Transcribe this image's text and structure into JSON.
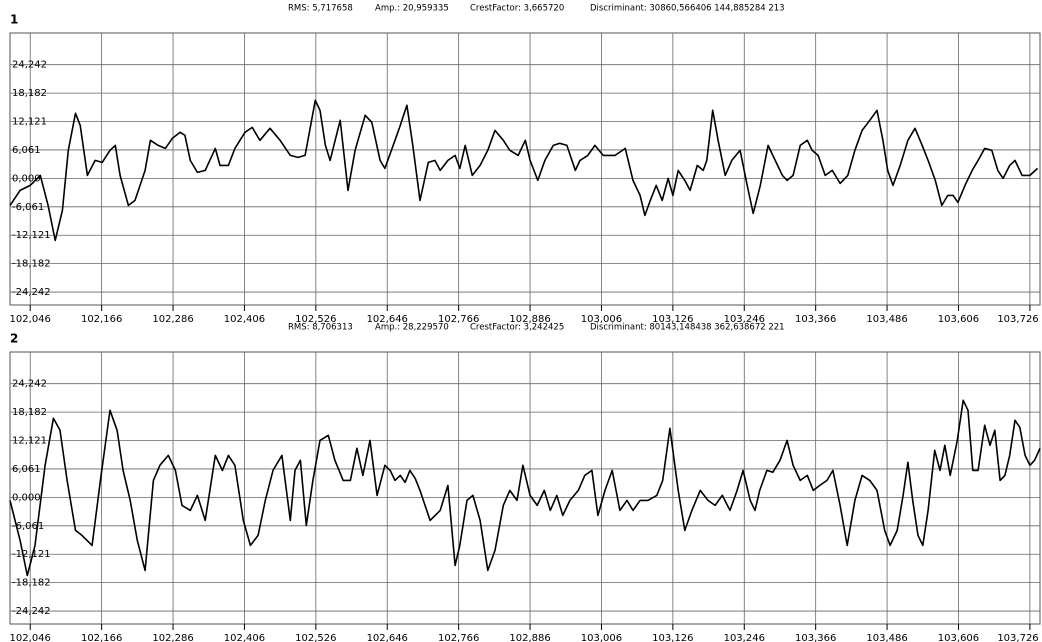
{
  "chart_data": [
    {
      "type": "line",
      "title": "1",
      "stats": [
        "RMS: 5,717658",
        "Amp.: 20,959335",
        "CrestFactor: 3,665720",
        "Discriminant: 30860,566406 144,885284 213"
      ],
      "color": "#000000",
      "grid": true,
      "xlim": [
        102.012,
        103.743
      ],
      "ylim": [
        -27,
        31
      ],
      "xticks": [
        {
          "value": 102.046,
          "label": "102,046"
        },
        {
          "value": 102.166,
          "label": "102,166"
        },
        {
          "value": 102.286,
          "label": "102,286"
        },
        {
          "value": 102.406,
          "label": "102,406"
        },
        {
          "value": 102.526,
          "label": "102,526"
        },
        {
          "value": 102.646,
          "label": "102,646"
        },
        {
          "value": 102.766,
          "label": "102,766"
        },
        {
          "value": 102.886,
          "label": "102,886"
        },
        {
          "value": 103.006,
          "label": "103,006"
        },
        {
          "value": 103.126,
          "label": "103,126"
        },
        {
          "value": 103.246,
          "label": "103,246"
        },
        {
          "value": 103.366,
          "label": "103,366"
        },
        {
          "value": 103.486,
          "label": "103,486"
        },
        {
          "value": 103.606,
          "label": "103,606"
        },
        {
          "value": 103.726,
          "label": "103,726"
        }
      ],
      "yticks": [
        {
          "value": 24.242,
          "label": "24,242"
        },
        {
          "value": 18.182,
          "label": "18,182"
        },
        {
          "value": 12.121,
          "label": "12,121"
        },
        {
          "value": 6.061,
          "label": "6,061"
        },
        {
          "value": 0,
          "label": "0,000"
        },
        {
          "value": -6.061,
          "label": "-6,061"
        },
        {
          "value": -12.121,
          "label": "-12,121"
        },
        {
          "value": -18.182,
          "label": "-18,182"
        },
        {
          "value": -24.242,
          "label": "-24,242"
        }
      ],
      "x": [
        102.012,
        102.029,
        102.046,
        102.063,
        102.076,
        102.088,
        102.1,
        102.11,
        102.122,
        102.13,
        102.142,
        102.155,
        102.167,
        102.18,
        102.189,
        102.197,
        102.211,
        102.222,
        102.239,
        102.248,
        102.261,
        102.273,
        102.285,
        102.298,
        102.306,
        102.315,
        102.327,
        102.34,
        102.357,
        102.365,
        102.379,
        102.39,
        102.407,
        102.419,
        102.432,
        102.449,
        102.466,
        102.483,
        102.496,
        102.508,
        102.525,
        102.533,
        102.542,
        102.55,
        102.567,
        102.58,
        102.592,
        102.609,
        102.62,
        102.634,
        102.642,
        102.659,
        102.668,
        102.679,
        102.689,
        102.701,
        102.715,
        102.726,
        102.735,
        102.748,
        102.76,
        102.768,
        102.777,
        102.789,
        102.802,
        102.815,
        102.827,
        102.841,
        102.852,
        102.866,
        102.878,
        102.886,
        102.899,
        102.911,
        102.925,
        102.936,
        102.948,
        102.962,
        102.97,
        102.983,
        102.995,
        103.009,
        103.029,
        103.046,
        103.059,
        103.071,
        103.079,
        103.088,
        103.098,
        103.108,
        103.118,
        103.126,
        103.135,
        103.146,
        103.155,
        103.167,
        103.177,
        103.183,
        103.193,
        103.202,
        103.214,
        103.225,
        103.239,
        103.251,
        103.261,
        103.273,
        103.286,
        103.298,
        103.31,
        103.318,
        103.328,
        103.34,
        103.352,
        103.36,
        103.37,
        103.382,
        103.394,
        103.407,
        103.42,
        103.432,
        103.444,
        103.457,
        103.469,
        103.479,
        103.487,
        103.496,
        103.508,
        103.521,
        103.533,
        103.545,
        103.555,
        103.567,
        103.578,
        103.588,
        103.597,
        103.605,
        103.617,
        103.629,
        103.639,
        103.65,
        103.662,
        103.672,
        103.681,
        103.692,
        103.701,
        103.713,
        103.726,
        103.739
      ],
      "values": [
        -5.76,
        -2.56,
        -1.49,
        0.64,
        -5.76,
        -13.23,
        -6.83,
        5.98,
        13.87,
        11.31,
        0.64,
        3.84,
        3.41,
        5.98,
        7.04,
        0.64,
        -5.76,
        -4.7,
        1.71,
        8.11,
        7.04,
        6.4,
        8.54,
        9.82,
        9.18,
        3.84,
        1.28,
        1.71,
        6.4,
        2.77,
        2.77,
        6.4,
        9.82,
        10.88,
        8.11,
        10.67,
        8.11,
        4.91,
        4.48,
        4.91,
        16.65,
        14.51,
        7.04,
        3.84,
        12.38,
        -2.56,
        5.98,
        13.45,
        11.95,
        3.84,
        2.13,
        8.11,
        11.31,
        15.58,
        7.04,
        -4.7,
        3.41,
        3.84,
        1.71,
        3.84,
        4.91,
        2.13,
        7.04,
        0.64,
        2.77,
        5.98,
        10.24,
        8.11,
        5.98,
        4.91,
        8.11,
        3.84,
        -0.43,
        3.84,
        7.04,
        7.47,
        7.04,
        1.71,
        3.84,
        4.91,
        7.04,
        4.91,
        4.91,
        6.4,
        -0.43,
        -3.63,
        -7.9,
        -4.7,
        -1.49,
        -4.7,
        0.0,
        -3.63,
        1.71,
        -0.43,
        -2.56,
        2.77,
        1.71,
        3.84,
        14.51,
        8.11,
        0.64,
        3.84,
        5.98,
        -1.49,
        -7.47,
        -1.49,
        7.04,
        3.84,
        0.64,
        -0.43,
        0.64,
        7.04,
        8.11,
        5.98,
        4.91,
        0.64,
        1.71,
        -1.07,
        0.64,
        5.98,
        10.24,
        12.38,
        14.51,
        8.11,
        1.71,
        -1.49,
        2.77,
        8.11,
        10.67,
        7.04,
        3.84,
        -0.43,
        -5.76,
        -3.63,
        -3.63,
        -5.12,
        -1.49,
        1.71,
        3.84,
        6.4,
        5.98,
        1.71,
        0.0,
        2.77,
        3.84,
        0.64,
        0.64,
        2.13
      ]
    },
    {
      "type": "line",
      "title": "2",
      "stats": [
        "RMS: 8,706313",
        "Amp.: 28,229570",
        "CrestFactor: 3,242425",
        "Discriminant: 80143,148438 362,638672 221"
      ],
      "color": "#000000",
      "grid": true,
      "xlim": [
        102.012,
        103.743
      ],
      "ylim": [
        -27,
        31
      ],
      "xticks": [
        {
          "value": 102.046,
          "label": "102,046"
        },
        {
          "value": 102.166,
          "label": "102,166"
        },
        {
          "value": 102.286,
          "label": "102,286"
        },
        {
          "value": 102.406,
          "label": "102,406"
        },
        {
          "value": 102.526,
          "label": "102,526"
        },
        {
          "value": 102.646,
          "label": "102,646"
        },
        {
          "value": 102.766,
          "label": "102,766"
        },
        {
          "value": 102.886,
          "label": "102,886"
        },
        {
          "value": 103.006,
          "label": "103,006"
        },
        {
          "value": 103.126,
          "label": "103,126"
        },
        {
          "value": 103.246,
          "label": "103,246"
        },
        {
          "value": 103.366,
          "label": "103,366"
        },
        {
          "value": 103.486,
          "label": "103,486"
        },
        {
          "value": 103.606,
          "label": "103,606"
        },
        {
          "value": 103.726,
          "label": "103,726"
        }
      ],
      "yticks": [
        {
          "value": 24.242,
          "label": "24,242"
        },
        {
          "value": 18.182,
          "label": "18,182"
        },
        {
          "value": 12.121,
          "label": "12,121"
        },
        {
          "value": 6.061,
          "label": "6,061"
        },
        {
          "value": 0,
          "label": "0,000"
        },
        {
          "value": -6.061,
          "label": "-6,061"
        },
        {
          "value": -12.121,
          "label": "-12,121"
        },
        {
          "value": -18.182,
          "label": "-18,182"
        },
        {
          "value": -24.242,
          "label": "-24,242"
        }
      ],
      "x": [
        102.012,
        102.029,
        102.041,
        102.054,
        102.071,
        102.085,
        102.096,
        102.108,
        102.122,
        102.133,
        102.15,
        102.164,
        102.18,
        102.192,
        102.202,
        102.214,
        102.226,
        102.239,
        102.253,
        102.264,
        102.278,
        102.29,
        102.301,
        102.315,
        102.327,
        102.34,
        102.348,
        102.357,
        102.369,
        102.379,
        102.39,
        102.404,
        102.416,
        102.429,
        102.441,
        102.454,
        102.469,
        102.483,
        102.491,
        102.5,
        102.51,
        102.521,
        102.533,
        102.547,
        102.558,
        102.572,
        102.584,
        102.595,
        102.605,
        102.617,
        102.629,
        102.642,
        102.651,
        102.659,
        102.668,
        102.676,
        102.684,
        102.693,
        102.701,
        102.718,
        102.735,
        102.748,
        102.76,
        102.768,
        102.78,
        102.79,
        102.802,
        102.815,
        102.827,
        102.841,
        102.852,
        102.864,
        102.874,
        102.886,
        102.898,
        102.91,
        102.92,
        102.931,
        102.941,
        102.953,
        102.967,
        102.978,
        102.99,
        103.0,
        103.012,
        103.024,
        103.037,
        103.049,
        103.059,
        103.071,
        103.084,
        103.099,
        103.109,
        103.121,
        103.135,
        103.146,
        103.158,
        103.172,
        103.185,
        103.197,
        103.209,
        103.222,
        103.234,
        103.244,
        103.256,
        103.264,
        103.272,
        103.284,
        103.294,
        103.306,
        103.318,
        103.328,
        103.34,
        103.352,
        103.362,
        103.373,
        103.385,
        103.395,
        103.407,
        103.419,
        103.432,
        103.444,
        103.457,
        103.469,
        103.482,
        103.491,
        103.503,
        103.513,
        103.521,
        103.529,
        103.538,
        103.546,
        103.555,
        103.566,
        103.575,
        103.583,
        103.592,
        103.604,
        103.614,
        103.622,
        103.63,
        103.639,
        103.65,
        103.659,
        103.667,
        103.676,
        103.684,
        103.692,
        103.701,
        103.709,
        103.718,
        103.726,
        103.734,
        103.743
      ],
      "values": [
        -0.64,
        -9.18,
        -16.65,
        -10.24,
        6.83,
        16.86,
        14.3,
        3.63,
        -7.04,
        -8.11,
        -10.24,
        3.63,
        18.57,
        14.3,
        5.76,
        -0.64,
        -9.18,
        -15.58,
        3.63,
        6.83,
        8.96,
        5.76,
        -1.71,
        -2.77,
        0.43,
        -4.91,
        1.49,
        8.96,
        5.76,
        8.96,
        6.83,
        -4.91,
        -10.24,
        -8.11,
        -0.64,
        5.76,
        8.96,
        -4.91,
        5.76,
        7.9,
        -5.98,
        3.63,
        12.16,
        13.23,
        7.9,
        3.63,
        3.63,
        10.46,
        4.69,
        12.16,
        0.43,
        6.83,
        5.76,
        3.63,
        4.69,
        3.2,
        5.76,
        4.05,
        1.49,
        -4.91,
        -2.77,
        2.56,
        -14.51,
        -10.24,
        -0.64,
        0.43,
        -4.91,
        -15.58,
        -11.31,
        -1.71,
        1.49,
        -0.64,
        6.83,
        0.43,
        -1.71,
        1.49,
        -2.77,
        0.43,
        -3.84,
        -0.64,
        1.49,
        4.69,
        5.76,
        -3.84,
        1.49,
        5.76,
        -2.77,
        -0.64,
        -2.77,
        -0.64,
        -0.64,
        0.43,
        3.63,
        14.72,
        1.49,
        -7.04,
        -2.77,
        1.49,
        -0.64,
        -1.71,
        0.43,
        -2.77,
        1.49,
        5.76,
        -0.64,
        -2.77,
        1.49,
        5.76,
        5.34,
        7.9,
        12.16,
        6.83,
        3.63,
        4.69,
        1.49,
        2.56,
        3.63,
        5.76,
        -1.71,
        -10.24,
        -0.64,
        4.69,
        3.63,
        1.49,
        -7.04,
        -10.24,
        -7.04,
        0.43,
        7.47,
        -0.64,
        -8.11,
        -10.24,
        -2.77,
        10.03,
        5.76,
        11.1,
        4.69,
        12.16,
        20.7,
        18.57,
        5.76,
        5.76,
        15.36,
        11.1,
        14.3,
        3.63,
        4.69,
        8.96,
        16.43,
        14.94,
        8.96,
        6.83,
        7.9,
        10.46
      ]
    }
  ]
}
